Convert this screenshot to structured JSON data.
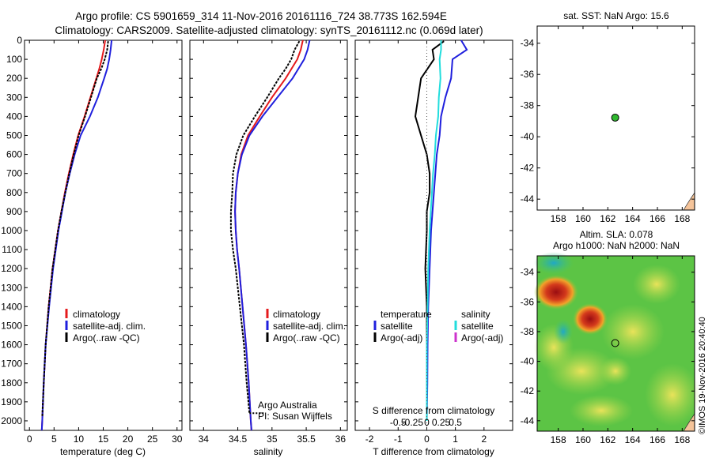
{
  "header": {
    "line1": "Argo profile: CS 5901659_314 11-Nov-2016 20161116_724 38.773S 162.594E",
    "line2": "Climatology: CARS2009. Satellite-adjusted climatology: synTS_20161112.nc (0.069d later)"
  },
  "depth_ticks": [
    0,
    100,
    200,
    300,
    400,
    500,
    600,
    700,
    800,
    900,
    1000,
    1100,
    1200,
    1300,
    1400,
    1500,
    1600,
    1700,
    1800,
    1900,
    2000
  ],
  "colors": {
    "climatology": "#e41a1c",
    "satellite": "#1f1fdd",
    "argo": "#000000",
    "sal_sat": "#22dddd",
    "sal_argo": "#cc33cc",
    "land": "#f5c49a"
  },
  "chart_data": [
    {
      "type": "line",
      "panel": "temperature",
      "xlabel": "temperature (deg C)",
      "xlim": [
        -1,
        31
      ],
      "ylim": [
        2050,
        0
      ],
      "x_ticks": [
        0,
        5,
        10,
        15,
        20,
        25,
        30
      ],
      "legend": [
        "climatology",
        "satellite-adj. clim.",
        "Argo(..raw -QC)"
      ],
      "series": [
        {
          "name": "climatology",
          "y": [
            0,
            50,
            100,
            150,
            200,
            300,
            400,
            500,
            600,
            700,
            800,
            900,
            1000,
            1200,
            1400,
            1600,
            1800,
            2000,
            2050
          ],
          "x": [
            15.4,
            15.1,
            14.7,
            14.2,
            13.6,
            12.4,
            11.2,
            9.9,
            8.9,
            8.0,
            7.2,
            6.5,
            5.8,
            4.7,
            3.9,
            3.3,
            2.9,
            2.6,
            2.5
          ]
        },
        {
          "name": "satellite-adj. clim.",
          "y": [
            0,
            50,
            100,
            150,
            200,
            300,
            400,
            500,
            600,
            700,
            800,
            900,
            1000,
            1200,
            1400,
            1600,
            1800,
            2000,
            2050
          ],
          "x": [
            16.7,
            16.5,
            16.2,
            15.8,
            15.2,
            13.9,
            12.3,
            10.4,
            9.2,
            8.2,
            7.3,
            6.6,
            5.9,
            4.8,
            4.0,
            3.3,
            2.9,
            2.6,
            2.5
          ]
        },
        {
          "name": "Argo(..raw -QC)",
          "y": [
            5,
            50,
            100,
            150,
            200,
            300,
            400,
            500,
            600,
            700,
            800,
            900,
            1000,
            1200,
            1400,
            1600,
            1800,
            1980
          ],
          "x": [
            16.0,
            15.8,
            15.3,
            14.6,
            13.7,
            12.5,
            11.3,
            10.0,
            9.0,
            8.1,
            7.3,
            6.5,
            5.8,
            4.7,
            3.9,
            3.3,
            2.9,
            2.6
          ]
        }
      ]
    },
    {
      "type": "line",
      "panel": "salinity",
      "xlabel": "salinity",
      "xlim": [
        33.8,
        36.1
      ],
      "ylim": [
        2050,
        0
      ],
      "x_ticks": [
        34,
        34.5,
        35,
        35.5,
        36
      ],
      "legend": [
        "climatology",
        "satellite-adj. clim.",
        "Argo(..raw -QC)"
      ],
      "annotation": [
        "Argo Australia",
        "PI: Susan Wijffels"
      ],
      "series": [
        {
          "name": "climatology",
          "y": [
            0,
            50,
            100,
            200,
            300,
            400,
            500,
            600,
            700,
            800,
            900,
            1000,
            1100,
            1200,
            1400,
            1600,
            1800,
            2000,
            2050
          ],
          "x": [
            35.45,
            35.42,
            35.37,
            35.2,
            35.0,
            34.82,
            34.65,
            34.55,
            34.5,
            34.47,
            34.46,
            34.47,
            34.49,
            34.52,
            34.57,
            34.62,
            34.66,
            34.69,
            34.7
          ]
        },
        {
          "name": "satellite-adj. clim.",
          "y": [
            0,
            50,
            100,
            200,
            300,
            400,
            500,
            600,
            700,
            800,
            900,
            1000,
            1100,
            1200,
            1400,
            1600,
            1800,
            2000,
            2050
          ],
          "x": [
            35.55,
            35.52,
            35.47,
            35.3,
            35.08,
            34.86,
            34.67,
            34.56,
            34.5,
            34.47,
            34.46,
            34.47,
            34.49,
            34.52,
            34.57,
            34.62,
            34.66,
            34.69,
            34.7
          ]
        },
        {
          "name": "Argo(..raw -QC)",
          "y": [
            5,
            50,
            100,
            150,
            200,
            300,
            400,
            500,
            600,
            700,
            800,
            900,
            1000,
            1100,
            1200,
            1400,
            1600,
            1800,
            1960
          ],
          "x": [
            35.4,
            35.33,
            35.28,
            35.2,
            35.1,
            34.93,
            34.75,
            34.58,
            34.48,
            34.43,
            34.42,
            34.4,
            34.4,
            34.43,
            34.47,
            34.53,
            34.59,
            34.63,
            34.67
          ]
        }
      ]
    },
    {
      "type": "line",
      "panel": "difference",
      "xlabel": "T difference from climatology",
      "xlabel_top": "S difference from climatology",
      "xlim": [
        -2.5,
        3
      ],
      "ylim": [
        2050,
        0
      ],
      "x_ticks": [
        -2,
        -1,
        0,
        1,
        2
      ],
      "x_ticks_top": [
        "-0.5",
        "-0.25",
        "0",
        "0.25",
        "0.5"
      ],
      "legend": {
        "temperature": [
          "satellite",
          "Argo(-adj)"
        ],
        "salinity": [
          "satellite",
          "Argo(-adj)"
        ]
      },
      "legend_titles": [
        "temperature",
        "salinity"
      ],
      "series": [
        {
          "name": "temperature satellite",
          "y": [
            0,
            50,
            100,
            200,
            300,
            400,
            500,
            600,
            700,
            800,
            900,
            1000,
            1200,
            1400,
            1600,
            1800,
            2000
          ],
          "x": [
            1.2,
            1.4,
            0.9,
            0.85,
            0.65,
            0.5,
            0.45,
            0.35,
            0.3,
            0.25,
            0.2,
            0.15,
            0.1,
            0.05,
            0.03,
            0.02,
            0.0
          ]
        },
        {
          "name": "temperature Argo(-adj)",
          "y": [
            5,
            50,
            100,
            200,
            300,
            400,
            500,
            600,
            700,
            800,
            900,
            1000,
            1200,
            1400,
            1600,
            1800,
            1980
          ],
          "x": [
            0.6,
            0.2,
            0.25,
            -0.2,
            -0.3,
            -0.4,
            -0.2,
            0.0,
            0.1,
            0.1,
            0.0,
            0.0,
            -0.05,
            0.0,
            0.0,
            0.0,
            0.0
          ]
        },
        {
          "name": "salinity satellite",
          "y": [
            0,
            50,
            100,
            200,
            300,
            400,
            500,
            600,
            700,
            800,
            900,
            1000,
            1200,
            1400,
            1600,
            1800,
            2000
          ],
          "x": [
            0.5,
            0.5,
            0.45,
            0.48,
            0.42,
            0.4,
            0.32,
            0.28,
            0.22,
            0.18,
            0.14,
            0.1,
            0.05,
            0.03,
            0.0,
            0.0,
            0.0
          ]
        },
        {
          "name": "salinity Argo(-adj)",
          "y": [],
          "x": []
        }
      ]
    }
  ],
  "map_sst": {
    "title": "sat. SST: NaN Argo: 15.6",
    "lon_ticks": [
      158,
      160,
      162,
      164,
      166,
      168
    ],
    "lat_ticks": [
      -34,
      -36,
      -38,
      -40,
      -42,
      -44
    ],
    "lon_range": [
      156.3,
      169
    ],
    "lat_range": [
      -44.7,
      -32.9
    ],
    "marker": {
      "lon": 162.594,
      "lat": -38.773,
      "color": "#2fb82f"
    }
  },
  "map_sla": {
    "title_line1": "Altim. SLA: 0.078",
    "title_line2": "Argo h1000: NaN h2000: NaN",
    "lon_ticks": [
      158,
      160,
      162,
      164,
      166,
      168
    ],
    "lat_ticks": [
      -34,
      -36,
      -38,
      -40,
      -42,
      -44
    ],
    "lon_range": [
      156.3,
      169
    ],
    "lat_range": [
      -44.7,
      -32.9
    ],
    "marker": {
      "lon": 162.594,
      "lat": -38.773
    }
  },
  "credit": "©IMOS 19-Nov-2016 20:40:40"
}
